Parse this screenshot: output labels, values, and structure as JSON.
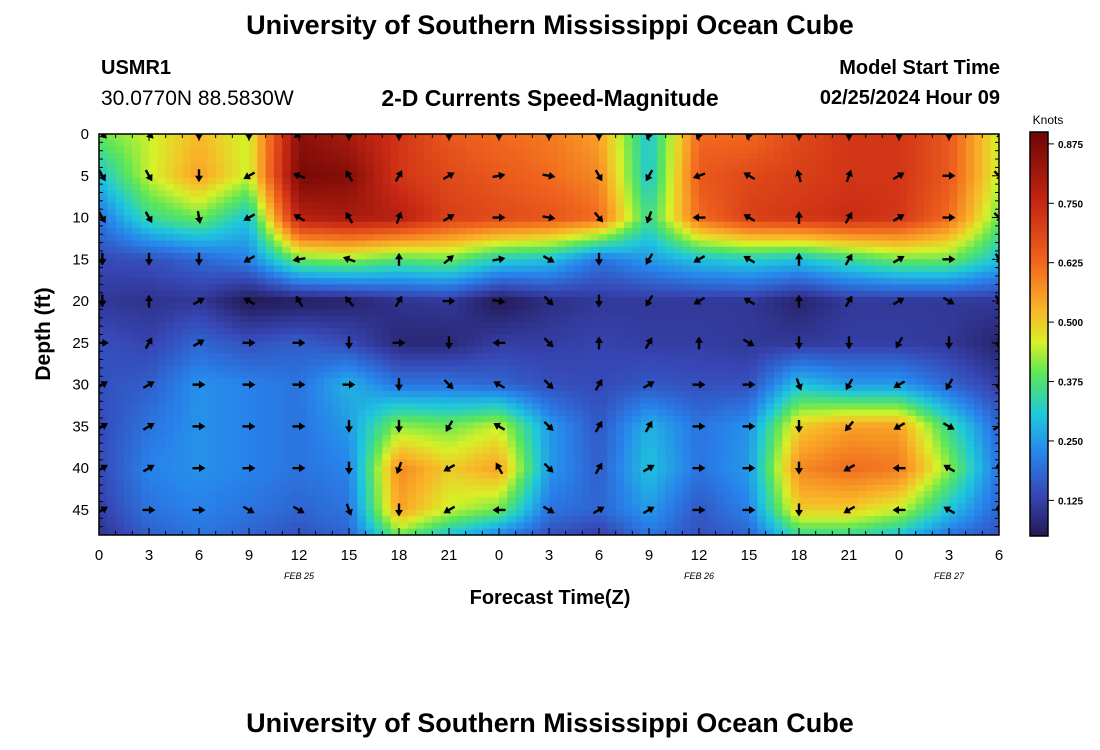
{
  "header": {
    "title": "University of Southern Mississippi Ocean Cube",
    "station": "USMR1",
    "coords": "30.0770N  88.5830W",
    "subtitle": "2-D Currents Speed-Magnitude",
    "model_start_label": "Model Start Time",
    "model_start_value": "02/25/2024 Hour 09"
  },
  "footer": {
    "title": "University of Southern Mississippi Ocean Cube"
  },
  "chart_data": {
    "type": "heatmap",
    "title": "2-D Currents Speed-Magnitude",
    "xlabel": "Forecast Time(Z)",
    "ylabel": "Depth (ft)",
    "xlim": [
      0,
      54
    ],
    "ylim": [
      0,
      48
    ],
    "x_ticks": [
      0,
      3,
      6,
      9,
      12,
      15,
      18,
      21,
      24,
      27,
      30,
      33,
      36,
      39,
      42,
      45,
      48,
      51,
      54
    ],
    "x_tick_labels": [
      "0",
      "3",
      "6",
      "9",
      "12",
      "15",
      "18",
      "21",
      "0",
      "3",
      "6",
      "9",
      "12",
      "15",
      "18",
      "21",
      "0",
      "3",
      "6"
    ],
    "y_ticks": [
      0,
      5,
      10,
      15,
      20,
      25,
      30,
      35,
      40,
      45
    ],
    "y_tick_labels": [
      "0",
      "5",
      "10",
      "15",
      "20",
      "25",
      "30",
      "35",
      "40",
      "45"
    ],
    "date_labels": [
      {
        "text": "FEB 25",
        "x": 12
      },
      {
        "text": "FEB 26",
        "x": 36
      },
      {
        "text": "FEB 27",
        "x": 51
      }
    ],
    "colorbar": {
      "label": "Knots",
      "range": [
        0.05,
        0.9
      ],
      "ticks": [
        0.125,
        0.25,
        0.375,
        0.5,
        0.625,
        0.75,
        0.875
      ],
      "tick_labels": [
        "0.125",
        "0.250",
        "0.375",
        "0.500",
        "0.625",
        "0.750",
        "0.875"
      ]
    },
    "grid_times": [
      0,
      3,
      6,
      9,
      12,
      15,
      18,
      21,
      24,
      27,
      30,
      33,
      36,
      39,
      42,
      45,
      48,
      51,
      54
    ],
    "grid_depths": [
      0,
      5,
      10,
      15,
      20,
      25,
      30,
      35,
      40,
      45,
      48
    ],
    "speed_knots": [
      [
        0.4,
        0.45,
        0.52,
        0.45,
        0.85,
        0.8,
        0.72,
        0.65,
        0.62,
        0.6,
        0.55,
        0.3,
        0.62,
        0.62,
        0.68,
        0.72,
        0.72,
        0.65,
        0.45
      ],
      [
        0.3,
        0.45,
        0.55,
        0.45,
        0.88,
        0.86,
        0.72,
        0.68,
        0.65,
        0.62,
        0.58,
        0.3,
        0.65,
        0.68,
        0.7,
        0.72,
        0.72,
        0.65,
        0.45
      ],
      [
        0.2,
        0.35,
        0.4,
        0.3,
        0.78,
        0.8,
        0.78,
        0.7,
        0.68,
        0.66,
        0.62,
        0.35,
        0.62,
        0.7,
        0.72,
        0.74,
        0.72,
        0.62,
        0.4
      ],
      [
        0.14,
        0.15,
        0.18,
        0.22,
        0.4,
        0.42,
        0.38,
        0.4,
        0.32,
        0.3,
        0.2,
        0.25,
        0.3,
        0.32,
        0.3,
        0.35,
        0.4,
        0.4,
        0.3
      ],
      [
        0.11,
        0.1,
        0.11,
        0.05,
        0.06,
        0.07,
        0.1,
        0.11,
        0.05,
        0.09,
        0.11,
        0.11,
        0.11,
        0.11,
        0.07,
        0.11,
        0.11,
        0.11,
        0.11
      ],
      [
        0.15,
        0.13,
        0.18,
        0.15,
        0.17,
        0.14,
        0.08,
        0.08,
        0.12,
        0.12,
        0.13,
        0.12,
        0.12,
        0.11,
        0.11,
        0.12,
        0.12,
        0.11,
        0.07
      ],
      [
        0.15,
        0.17,
        0.24,
        0.22,
        0.2,
        0.28,
        0.2,
        0.2,
        0.18,
        0.15,
        0.14,
        0.16,
        0.15,
        0.15,
        0.3,
        0.25,
        0.25,
        0.18,
        0.12
      ],
      [
        0.14,
        0.2,
        0.24,
        0.22,
        0.2,
        0.25,
        0.42,
        0.4,
        0.45,
        0.25,
        0.16,
        0.28,
        0.2,
        0.24,
        0.5,
        0.55,
        0.55,
        0.35,
        0.18
      ],
      [
        0.14,
        0.22,
        0.24,
        0.22,
        0.2,
        0.22,
        0.58,
        0.5,
        0.55,
        0.25,
        0.17,
        0.3,
        0.2,
        0.25,
        0.58,
        0.62,
        0.6,
        0.42,
        0.2
      ],
      [
        0.12,
        0.2,
        0.22,
        0.2,
        0.18,
        0.2,
        0.55,
        0.45,
        0.4,
        0.2,
        0.18,
        0.25,
        0.16,
        0.22,
        0.5,
        0.5,
        0.45,
        0.3,
        0.18
      ],
      [
        0.1,
        0.17,
        0.2,
        0.18,
        0.15,
        0.18,
        0.4,
        0.3,
        0.22,
        0.15,
        0.12,
        0.2,
        0.15,
        0.18,
        0.35,
        0.35,
        0.3,
        0.2,
        0.15
      ]
    ],
    "vector_times": [
      0.2,
      3,
      6,
      9,
      12,
      15,
      18,
      21,
      24,
      27,
      30,
      33,
      36,
      39,
      42,
      45,
      48,
      51,
      54
    ],
    "vector_depths": [
      0,
      5,
      10,
      15,
      20,
      25,
      30,
      35,
      40,
      45
    ],
    "vector_directions_deg": [
      [
        135,
        135,
        180,
        180,
        230,
        180,
        180,
        180,
        180,
        180,
        180,
        200,
        200,
        200,
        180,
        180,
        180,
        180,
        135
      ],
      [
        150,
        150,
        180,
        240,
        290,
        330,
        30,
        60,
        80,
        100,
        150,
        210,
        250,
        300,
        345,
        20,
        60,
        90,
        135
      ],
      [
        150,
        150,
        170,
        240,
        300,
        330,
        20,
        60,
        90,
        100,
        140,
        200,
        270,
        300,
        0,
        30,
        60,
        90,
        135
      ],
      [
        180,
        180,
        180,
        240,
        260,
        290,
        0,
        50,
        80,
        120,
        180,
        210,
        240,
        300,
        0,
        30,
        60,
        90,
        150
      ],
      [
        180,
        0,
        60,
        300,
        330,
        320,
        30,
        90,
        100,
        135,
        180,
        210,
        240,
        300,
        0,
        30,
        60,
        120,
        150
      ],
      [
        90,
        30,
        60,
        90,
        90,
        180,
        90,
        180,
        270,
        135,
        0,
        30,
        0,
        120,
        180,
        180,
        210,
        180,
        180
      ],
      [
        60,
        60,
        90,
        90,
        90,
        90,
        180,
        135,
        300,
        135,
        30,
        60,
        90,
        90,
        160,
        210,
        240,
        210,
        180
      ],
      [
        60,
        60,
        90,
        90,
        90,
        180,
        180,
        210,
        300,
        135,
        30,
        30,
        90,
        90,
        180,
        220,
        240,
        120,
        60
      ],
      [
        60,
        60,
        90,
        90,
        90,
        180,
        200,
        240,
        330,
        135,
        30,
        60,
        90,
        90,
        180,
        240,
        270,
        300,
        0
      ],
      [
        60,
        90,
        90,
        120,
        120,
        160,
        180,
        240,
        270,
        120,
        60,
        60,
        90,
        90,
        180,
        240,
        270,
        300,
        0
      ]
    ]
  }
}
